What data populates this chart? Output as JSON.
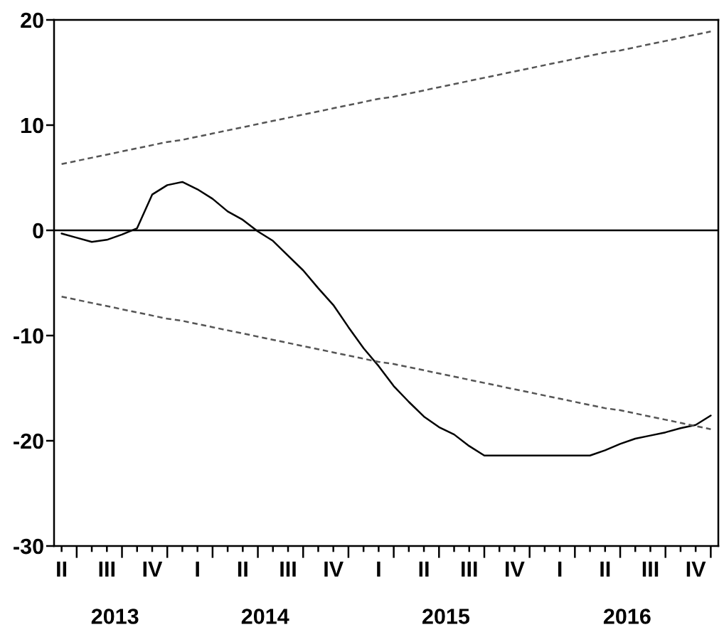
{
  "chart_data": {
    "type": "line",
    "categories": [
      "II",
      null,
      null,
      "III",
      null,
      null,
      "IV",
      null,
      null,
      "I",
      null,
      null,
      "II",
      null,
      null,
      "III",
      null,
      null,
      "IV",
      null,
      null,
      "I",
      null,
      null,
      "II",
      null,
      null,
      "III",
      null,
      null,
      "IV",
      null,
      null,
      "I",
      null,
      null,
      "II",
      null,
      null,
      "III",
      null,
      null,
      "IV",
      null
    ],
    "series": [
      {
        "color": "#000000",
        "line_style": "solid",
        "values": [
          -0.3,
          -0.7,
          -1.1,
          -0.9,
          -0.4,
          0.2,
          3.4,
          4.3,
          4.6,
          3.9,
          3.0,
          1.8,
          1.0,
          -0.1,
          -1.0,
          -2.4,
          -3.8,
          -5.5,
          -7.1,
          -9.2,
          -11.2,
          -12.9,
          -14.8,
          -16.3,
          -17.7,
          -18.7,
          -19.4,
          -20.5,
          -21.4,
          -21.4,
          -21.4,
          -21.4,
          -21.4,
          -21.4,
          -21.4,
          -21.4,
          -20.9,
          -20.3,
          -19.8,
          -19.5,
          -19.2,
          -18.8,
          -18.5,
          -17.6
        ]
      },
      {
        "color": "#555555",
        "line_style": "dashed",
        "values": [
          6.3,
          6.6,
          6.9,
          7.2,
          7.5,
          7.8,
          8.1,
          8.4,
          8.6,
          8.9,
          9.2,
          9.5,
          9.8,
          10.1,
          10.4,
          10.7,
          11.0,
          11.3,
          11.6,
          11.9,
          12.2,
          12.5,
          12.7,
          13.0,
          13.3,
          13.6,
          13.9,
          14.2,
          14.5,
          14.8,
          15.1,
          15.4,
          15.7,
          16.0,
          16.3,
          16.6,
          16.9,
          17.1,
          17.4,
          17.7,
          18.0,
          18.3,
          18.6,
          18.9
        ]
      },
      {
        "color": "#555555",
        "line_style": "dashed",
        "values": [
          -6.3,
          -6.6,
          -6.9,
          -7.2,
          -7.5,
          -7.8,
          -8.1,
          -8.4,
          -8.6,
          -8.9,
          -9.2,
          -9.5,
          -9.8,
          -10.1,
          -10.4,
          -10.7,
          -11.0,
          -11.3,
          -11.6,
          -11.9,
          -12.2,
          -12.5,
          -12.7,
          -13.0,
          -13.3,
          -13.6,
          -13.9,
          -14.2,
          -14.5,
          -14.8,
          -15.1,
          -15.4,
          -15.7,
          -16.0,
          -16.3,
          -16.6,
          -16.9,
          -17.1,
          -17.4,
          -17.7,
          -18.0,
          -18.3,
          -18.6,
          -18.9
        ]
      }
    ],
    "x2lim": [
      "2013-05-01",
      "2017-01-01"
    ],
    "x2ticks": [
      {
        "value": "2013-09-01",
        "label": "2013"
      },
      {
        "value": "2014-07-01",
        "label": "2014"
      },
      {
        "value": "2015-07-01",
        "label": "2015"
      },
      {
        "value": "2016-07-01",
        "label": "2016"
      }
    ],
    "ylim": [
      -30,
      20
    ],
    "yticks": [
      -30,
      -20,
      -10,
      0,
      10,
      20
    ],
    "ref_lines": [
      {
        "axis": "y",
        "value": 0,
        "color": "#000000"
      }
    ]
  }
}
